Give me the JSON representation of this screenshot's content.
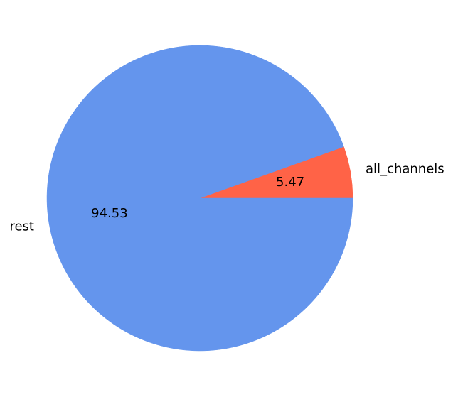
{
  "chart_data": {
    "type": "pie",
    "labels": [
      "all_channels",
      "rest"
    ],
    "values": [
      5.47,
      94.53
    ],
    "colors": [
      "#ff6347",
      "#6495ed"
    ],
    "start_angle_deg": 0,
    "direction": "counterclockwise",
    "legend": "none"
  }
}
